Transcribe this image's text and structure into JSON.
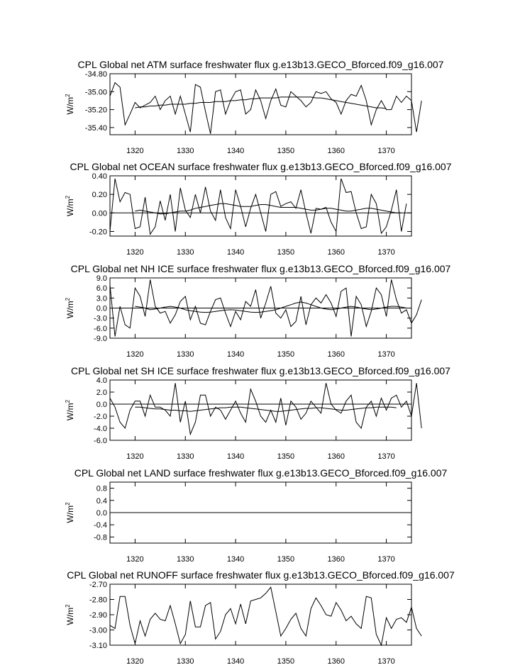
{
  "chart_data": [
    {
      "type": "line",
      "title": "CPL Global net ATM surface freshwater flux g.e13b13.GECO_Bforced.f09_g16.007",
      "ylabel": "W/m",
      "ylabel_sup": "2",
      "xlim": [
        1315,
        1375
      ],
      "ylim": [
        -35.48,
        -34.8
      ],
      "yticks": [
        "-34.80",
        "-35.00",
        "-35.20",
        "-35.40"
      ],
      "ytick_values": [
        -34.8,
        -35.0,
        -35.2,
        -35.4
      ],
      "xticks": [
        "1320",
        "1330",
        "1340",
        "1350",
        "1360",
        "1370"
      ],
      "xtick_values": [
        1320,
        1330,
        1340,
        1350,
        1360,
        1370
      ],
      "zero_line": null,
      "series": [
        {
          "x0": 1315,
          "values": [
            -35.05,
            -34.9,
            -34.95,
            -35.37,
            -35.25,
            -35.12,
            -35.18,
            -35.15,
            -35.12,
            -35.05,
            -35.2,
            -35.1,
            -35.05,
            -35.25,
            -35.05,
            -35.25,
            -35.45,
            -34.92,
            -34.95,
            -35.22,
            -35.47,
            -35.0,
            -34.98,
            -35.25,
            -35.1,
            -35.0,
            -34.98,
            -35.25,
            -35.2,
            -34.98,
            -35.1,
            -35.3,
            -35.1,
            -34.97,
            -35.15,
            -35.17,
            -35.0,
            -35.05,
            -35.1,
            -35.17,
            -35.12,
            -35.0,
            -35.02,
            -35.0,
            -35.08,
            -35.12,
            -35.25,
            -35.1,
            -35.03,
            -35.05,
            -34.93,
            -35.1,
            -35.37,
            -35.2,
            -35.1,
            -35.2,
            -35.2,
            -35.05,
            -35.12,
            -35.05,
            -35.1,
            -35.45,
            -35.1
          ]
        },
        {
          "x0": 1320,
          "values": [
            -35.18,
            -35.17,
            -35.17,
            -35.16,
            -35.16,
            -35.15,
            -35.15,
            -35.14,
            -35.14,
            -35.14,
            -35.14,
            -35.13,
            -35.13,
            -35.12,
            -35.12,
            -35.12,
            -35.11,
            -35.11,
            -35.11,
            -35.1,
            -35.1,
            -35.09,
            -35.09,
            -35.08,
            -35.08,
            -35.07,
            -35.07,
            -35.07,
            -35.07,
            -35.06,
            -35.06,
            -35.06,
            -35.06,
            -35.06,
            -35.06,
            -35.06,
            -35.07,
            -35.07,
            -35.08,
            -35.09,
            -35.1,
            -35.11,
            -35.12,
            -35.13,
            -35.14,
            -35.15,
            -35.16,
            -35.17,
            -35.18,
            -35.18,
            -35.19
          ]
        }
      ]
    },
    {
      "type": "line",
      "title": "CPL Global net OCEAN surface freshwater flux g.e13b13.GECO_Bforced.f09_g16.007",
      "ylabel": "W/m",
      "ylabel_sup": "2",
      "xlim": [
        1315,
        1375
      ],
      "ylim": [
        -0.25,
        0.4
      ],
      "yticks": [
        "0.40",
        "0.20",
        "0.00",
        "-0.20"
      ],
      "ytick_values": [
        0.4,
        0.2,
        0.0,
        -0.2
      ],
      "xticks": [
        "1320",
        "1330",
        "1340",
        "1350",
        "1360",
        "1370"
      ],
      "xtick_values": [
        1320,
        1330,
        1340,
        1350,
        1360,
        1370
      ],
      "zero_line": 0,
      "series": [
        {
          "x0": 1315,
          "values": [
            -0.2,
            0.37,
            0.12,
            0.22,
            0.2,
            -0.17,
            -0.15,
            0.17,
            -0.23,
            -0.15,
            0.13,
            -0.08,
            0.2,
            -0.2,
            0.27,
            0.03,
            -0.05,
            0.2,
            0.0,
            0.28,
            0.02,
            -0.08,
            0.25,
            -0.05,
            -0.17,
            0.25,
            0.07,
            -0.15,
            0.05,
            0.2,
            0.0,
            -0.2,
            0.2,
            0.23,
            0.07,
            0.1,
            0.12,
            0.05,
            0.25,
            0.0,
            -0.22,
            0.05,
            0.04,
            0.06,
            -0.1,
            -0.2,
            0.37,
            0.22,
            0.23,
            0.0,
            -0.17,
            -0.15,
            0.2,
            0.1,
            -0.22,
            -0.15,
            0.03,
            0.25,
            -0.2,
            0.1
          ]
        },
        {
          "x0": 1320,
          "values": [
            0.02,
            0.03,
            0.02,
            0.01,
            0.0,
            -0.01,
            -0.01,
            0.0,
            0.01,
            0.02,
            0.02,
            0.03,
            0.05,
            0.06,
            0.07,
            0.08,
            0.09,
            0.1,
            0.1,
            0.09,
            0.08,
            0.07,
            0.07,
            0.07,
            0.08,
            0.09,
            0.09,
            0.08,
            0.07,
            0.06,
            0.06,
            0.06,
            0.06,
            0.05,
            0.04,
            0.03,
            0.03,
            0.04,
            0.05,
            0.05,
            0.04,
            0.03,
            0.02,
            0.02,
            0.03,
            0.04,
            0.05,
            0.05,
            0.04,
            0.03,
            0.02,
            0.01,
            0.0,
            0.0
          ]
        }
      ]
    },
    {
      "type": "line",
      "title": "CPL Global net NH ICE surface freshwater flux g.e13b13.GECO_Bforced.f09_g16.007",
      "ylabel": "W/m",
      "ylabel_sup": "2",
      "xlim": [
        1315,
        1375
      ],
      "ylim": [
        -9.0,
        9.0
      ],
      "yticks": [
        "9.0",
        "6.0",
        "3.0",
        "0.0",
        "-3.0",
        "-6.0",
        "-9.0"
      ],
      "ytick_values": [
        9,
        6,
        3,
        0,
        -3,
        -6,
        -9
      ],
      "xticks": [
        "1320",
        "1330",
        "1340",
        "1350",
        "1360",
        "1370"
      ],
      "xtick_values": [
        1320,
        1330,
        1340,
        1350,
        1360,
        1370
      ],
      "zero_line": 0,
      "series": [
        {
          "x0": 1315,
          "values": [
            7.0,
            -8.5,
            0.5,
            -5.0,
            -6.0,
            6.0,
            3.5,
            -2.5,
            8.5,
            0.5,
            -1.5,
            -1.0,
            -4.5,
            -2.0,
            2.0,
            3.5,
            -3.5,
            0.5,
            -4.5,
            -5.0,
            -1.0,
            2.5,
            3.0,
            -1.5,
            -5.5,
            -1.0,
            -3.5,
            2.0,
            0.5,
            5.5,
            -3.0,
            1.5,
            6.5,
            -1.5,
            -3.0,
            -0.5,
            -5.5,
            -4.0,
            3.5,
            -5.0,
            1.0,
            3.0,
            1.5,
            4.0,
            1.5,
            -2.5,
            5.0,
            6.0,
            -8.5,
            3.5,
            1.0,
            -5.5,
            -1.0,
            6.0,
            4.0,
            -2.5,
            8.5,
            2.5,
            -1.5,
            -0.5,
            -4.5,
            -2.0,
            2.5
          ]
        },
        {
          "x0": 1320,
          "values": [
            0.5,
            0.3,
            0.0,
            -0.5,
            -0.3,
            0.0,
            0.3,
            0.5,
            0.3,
            0.0,
            -0.5,
            -0.8,
            -1.0,
            -1.2,
            -1.3,
            -1.2,
            -1.0,
            -0.8,
            -0.6,
            -0.5,
            -0.6,
            -0.8,
            -1.0,
            -1.2,
            -1.3,
            -1.2,
            -1.0,
            -0.8,
            -0.5,
            0.0,
            0.5,
            1.0,
            1.5,
            1.8,
            1.5,
            1.0,
            0.5,
            0.0,
            -0.3,
            -0.5,
            -0.3,
            0.0,
            0.3,
            0.5,
            0.3,
            0.0,
            -0.3,
            -0.5,
            -0.3,
            0.0,
            0.3,
            0.5,
            0.5,
            0.3,
            0.0
          ]
        }
      ]
    },
    {
      "type": "line",
      "title": "CPL Global net SH ICE surface freshwater flux g.e13b13.GECO_Bforced.f09_g16.007",
      "ylabel": "W/m",
      "ylabel_sup": "2",
      "xlim": [
        1315,
        1375
      ],
      "ylim": [
        -6.0,
        4.0
      ],
      "yticks": [
        "4.0",
        "2.0",
        "0.0",
        "-2.0",
        "-4.0",
        "-6.0"
      ],
      "ytick_values": [
        4,
        2,
        0,
        -2,
        -4,
        -6
      ],
      "xticks": [
        "1320",
        "1330",
        "1340",
        "1350",
        "1360",
        "1370"
      ],
      "xtick_values": [
        1320,
        1330,
        1340,
        1350,
        1360,
        1370
      ],
      "zero_line": 0,
      "series": [
        {
          "x0": 1315,
          "values": [
            1.0,
            -0.5,
            -3.0,
            -4.0,
            -1.0,
            0.5,
            0.5,
            -2.0,
            1.5,
            -0.5,
            -0.5,
            -1.0,
            -2.0,
            3.5,
            -3.0,
            0.5,
            -5.0,
            -3.0,
            1.5,
            1.5,
            -2.0,
            -0.5,
            -1.0,
            -2.5,
            -1.0,
            0.5,
            -1.5,
            -3.0,
            2.5,
            0.5,
            -2.0,
            -3.0,
            -1.0,
            -3.0,
            1.0,
            -3.5,
            0.5,
            -0.5,
            -2.5,
            -1.5,
            0.5,
            -0.5,
            -1.5,
            3.5,
            0.0,
            -1.0,
            -1.5,
            0.5,
            1.5,
            -3.0,
            -4.0,
            -0.5,
            0.5,
            -2.0,
            1.0,
            -1.0,
            1.0,
            1.5,
            -0.5,
            0.5,
            -2.0,
            3.5,
            -4.0
          ]
        },
        {
          "x0": 1320,
          "values": [
            -0.5,
            -0.5,
            -0.6,
            -0.7,
            -0.8,
            -0.8,
            -0.9,
            -1.0,
            -1.0,
            -1.1,
            -1.1,
            -1.2,
            -1.1,
            -1.0,
            -0.9,
            -0.8,
            -0.7,
            -0.6,
            -0.6,
            -0.5,
            -0.5,
            -0.5,
            -0.6,
            -0.7,
            -0.8,
            -0.9,
            -1.0,
            -1.1,
            -1.2,
            -1.2,
            -1.1,
            -1.0,
            -0.9,
            -0.8,
            -0.7,
            -0.7,
            -0.6,
            -0.6,
            -0.7,
            -0.8,
            -0.9,
            -1.0,
            -1.0,
            -0.9,
            -0.8,
            -0.7,
            -0.6,
            -0.6,
            -0.5,
            -0.5,
            -0.5,
            -0.5,
            -0.6
          ]
        }
      ]
    },
    {
      "type": "line",
      "title": "CPL Global net LAND surface freshwater flux g.e13b13.GECO_Bforced.f09_g16.007",
      "ylabel": "W/m",
      "ylabel_sup": "2",
      "xlim": [
        1315,
        1375
      ],
      "ylim": [
        -1.0,
        1.0
      ],
      "yticks": [
        "0.8",
        "0.4",
        "0.0",
        "-0.4",
        "-0.8"
      ],
      "ytick_values": [
        0.8,
        0.4,
        0.0,
        -0.4,
        -0.8
      ],
      "xticks": [
        "1320",
        "1330",
        "1340",
        "1350",
        "1360",
        "1370"
      ],
      "xtick_values": [
        1320,
        1330,
        1340,
        1350,
        1360,
        1370
      ],
      "zero_line": 0,
      "series": [
        {
          "x0": 1315,
          "values": [
            0,
            0,
            0,
            0,
            0,
            0,
            0,
            0,
            0,
            0,
            0,
            0,
            0,
            0,
            0,
            0,
            0,
            0,
            0,
            0,
            0,
            0,
            0,
            0,
            0,
            0,
            0,
            0,
            0,
            0,
            0,
            0,
            0,
            0,
            0,
            0,
            0,
            0,
            0,
            0,
            0,
            0,
            0,
            0,
            0,
            0,
            0,
            0,
            0,
            0,
            0,
            0,
            0,
            0,
            0,
            0,
            0,
            0,
            0,
            0,
            0
          ]
        },
        {
          "x0": 1320,
          "values": [
            0,
            0,
            0,
            0,
            0,
            0,
            0,
            0,
            0,
            0,
            0,
            0,
            0,
            0,
            0,
            0,
            0,
            0,
            0,
            0,
            0,
            0,
            0,
            0,
            0,
            0,
            0,
            0,
            0,
            0,
            0,
            0,
            0,
            0,
            0,
            0,
            0,
            0,
            0,
            0,
            0,
            0,
            0,
            0,
            0,
            0,
            0,
            0,
            0,
            0,
            0
          ]
        }
      ]
    },
    {
      "type": "line",
      "title": "CPL Global net RUNOFF surface freshwater flux g.e13b13.GECO_Bforced.f09_g16.007",
      "ylabel": "W/m",
      "ylabel_sup": "2",
      "xlim": [
        1315,
        1375
      ],
      "ylim": [
        -3.1,
        -2.7
      ],
      "yticks": [
        "-2.70",
        "-2.80",
        "-2.90",
        "-3.00",
        "-3.10"
      ],
      "ytick_values": [
        -2.7,
        -2.8,
        -2.9,
        -3.0,
        -3.1
      ],
      "xticks": [
        "1320",
        "1330",
        "1340",
        "1350",
        "1360",
        "1370"
      ],
      "xtick_values": [
        1320,
        1330,
        1340,
        1350,
        1360,
        1370
      ],
      "zero_line": null,
      "series": [
        {
          "x0": 1315,
          "values": [
            -2.97,
            -2.99,
            -2.78,
            -2.78,
            -2.97,
            -3.09,
            -2.94,
            -3.04,
            -2.93,
            -2.89,
            -2.93,
            -2.94,
            -2.84,
            -2.96,
            -3.09,
            -3.03,
            -2.81,
            -2.98,
            -2.98,
            -2.84,
            -2.82,
            -3.06,
            -3.01,
            -2.9,
            -2.86,
            -2.96,
            -2.83,
            -2.96,
            -2.81,
            -2.8,
            -2.79,
            -2.76,
            -2.72,
            -2.88,
            -3.04,
            -2.99,
            -2.93,
            -2.89,
            -2.99,
            -3.04,
            -2.86,
            -2.79,
            -2.84,
            -2.9,
            -2.91,
            -2.82,
            -2.87,
            -2.94,
            -2.91,
            -2.96,
            -2.99,
            -2.78,
            -2.79,
            -3.03,
            -3.1,
            -2.92,
            -2.99,
            -2.93,
            -2.92,
            -2.95,
            -2.85,
            -2.99,
            -3.04
          ]
        }
      ]
    }
  ]
}
